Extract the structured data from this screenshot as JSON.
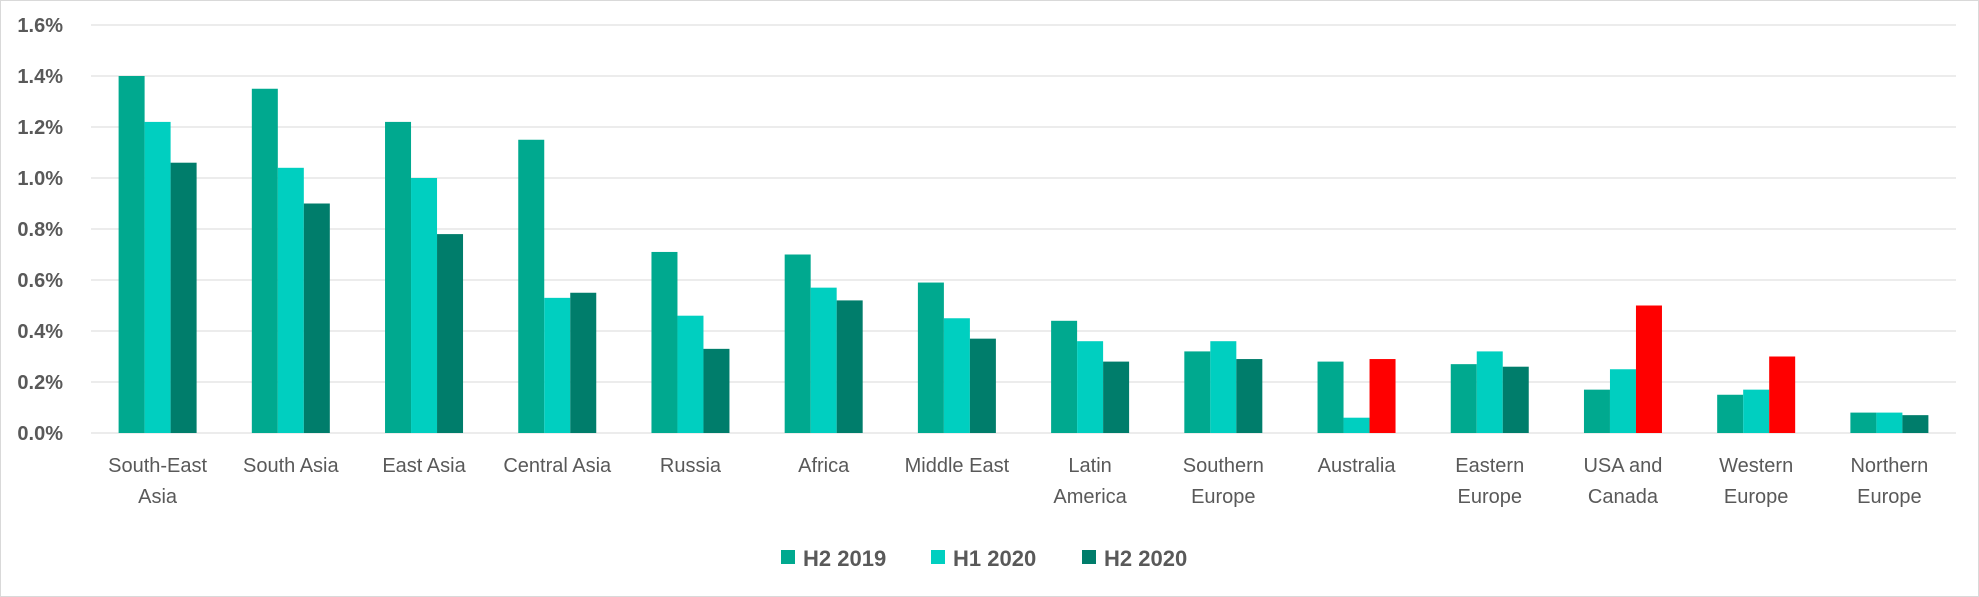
{
  "chart_data": {
    "type": "bar",
    "title": "",
    "xlabel": "",
    "ylabel": "",
    "ylim": [
      0,
      1.6
    ],
    "y_ticks": [
      "0.0%",
      "0.2%",
      "0.4%",
      "0.6%",
      "0.8%",
      "1.0%",
      "1.2%",
      "1.4%",
      "1.6%"
    ],
    "y_tick_values": [
      0,
      0.2,
      0.4,
      0.6,
      0.8,
      1.0,
      1.2,
      1.4,
      1.6
    ],
    "grid": true,
    "legend_position": "bottom-center",
    "highlight_color": "#ff0000",
    "categories": [
      [
        "South-East",
        "Asia"
      ],
      [
        "South Asia"
      ],
      [
        "East Asia"
      ],
      [
        "Central Asia"
      ],
      [
        "Russia"
      ],
      [
        "Africa"
      ],
      [
        "Middle East"
      ],
      [
        "Latin",
        "America"
      ],
      [
        "Southern",
        "Europe"
      ],
      [
        "Australia"
      ],
      [
        "Eastern",
        "Europe"
      ],
      [
        "USA and",
        "Canada"
      ],
      [
        "Western",
        "Europe"
      ],
      [
        "Northern",
        "Europe"
      ]
    ],
    "series": [
      {
        "name": "H2 2019",
        "color": "#00a98f",
        "values": [
          1.4,
          1.35,
          1.22,
          1.15,
          0.71,
          0.7,
          0.59,
          0.44,
          0.32,
          0.28,
          0.27,
          0.17,
          0.15,
          0.08
        ]
      },
      {
        "name": "H1 2020",
        "color": "#00cfc0",
        "values": [
          1.22,
          1.04,
          1.0,
          0.53,
          0.46,
          0.57,
          0.45,
          0.36,
          0.36,
          0.06,
          0.32,
          0.25,
          0.17,
          0.08
        ]
      },
      {
        "name": "H2 2020",
        "color": "#007d6b",
        "values": [
          1.06,
          0.9,
          0.78,
          0.55,
          0.33,
          0.52,
          0.37,
          0.28,
          0.29,
          0.29,
          0.26,
          0.5,
          0.3,
          0.07
        ],
        "highlighted_indices": [
          9,
          11,
          12
        ]
      }
    ]
  }
}
